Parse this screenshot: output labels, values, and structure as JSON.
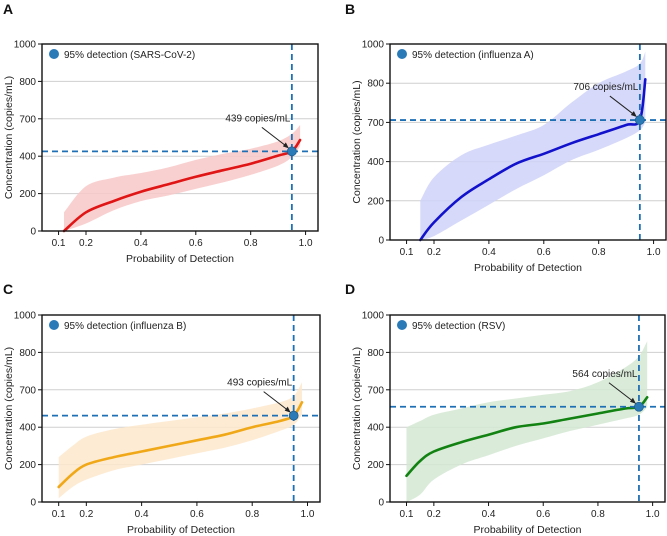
{
  "chart_data": [
    {
      "panel": "A",
      "type": "line",
      "xlabel": "Probability of Detection",
      "ylabel": "Concentration (copies/mL)",
      "ylim": [
        0,
        1000
      ],
      "xticks": [
        "0.1",
        "0.2",
        "0.4",
        "0.6",
        "0.8",
        "1.0"
      ],
      "yticks": [
        "0",
        "200",
        "400",
        "700",
        "800",
        "1000"
      ],
      "legend": "95% detection (SARS-CoV-2)",
      "annotation": "439 copies/mL",
      "color": "#e01515",
      "band_color": "#f8c8c8",
      "detection_point": {
        "x": 0.95,
        "y": 439
      },
      "x": [
        0.12,
        0.2,
        0.3,
        0.4,
        0.5,
        0.6,
        0.7,
        0.8,
        0.9,
        0.95,
        0.98
      ],
      "values": [
        0,
        100,
        160,
        210,
        250,
        290,
        325,
        360,
        405,
        439,
        530
      ],
      "band_low": [
        0,
        40,
        110,
        160,
        190,
        225,
        260,
        300,
        350,
        395,
        480
      ],
      "band_high": [
        100,
        240,
        285,
        310,
        340,
        380,
        420,
        460,
        520,
        580,
        650
      ]
    },
    {
      "panel": "B",
      "type": "line",
      "xlabel": "Probability of Detection",
      "ylabel": "Concentration (copies/mL)",
      "ylim": [
        0,
        1000
      ],
      "xticks": [
        "0.1",
        "0.2",
        "0.4",
        "0.6",
        "0.8",
        "1.0"
      ],
      "yticks": [
        "0",
        "200",
        "400",
        "700",
        "800",
        "1000"
      ],
      "legend": "95% detection (influenza A)",
      "annotation": "706 copies/mL",
      "color": "#1212cc",
      "band_color": "#cfd2f8",
      "detection_point": {
        "x": 0.95,
        "y": 706
      },
      "x": [
        0.15,
        0.2,
        0.3,
        0.4,
        0.5,
        0.6,
        0.7,
        0.8,
        0.9,
        0.95,
        0.97
      ],
      "values": [
        0,
        90,
        220,
        310,
        390,
        460,
        540,
        610,
        680,
        706,
        820
      ],
      "band_low": [
        0,
        20,
        100,
        180,
        260,
        330,
        410,
        490,
        580,
        640,
        700
      ],
      "band_high": [
        200,
        320,
        450,
        530,
        600,
        680,
        750,
        800,
        860,
        900,
        960
      ]
    },
    {
      "panel": "C",
      "type": "line",
      "xlabel": "Probability of Detection",
      "ylabel": "Concentration (copies/mL)",
      "ylim": [
        0,
        1000
      ],
      "xticks": [
        "0.1",
        "0.2",
        "0.4",
        "0.6",
        "0.8",
        "1.0"
      ],
      "yticks": [
        "0",
        "200",
        "400",
        "700",
        "800",
        "1000"
      ],
      "legend": "95% detection (influenza B)",
      "annotation": "493 copies/mL",
      "color": "#f0a818",
      "band_color": "#fde8cc",
      "detection_point": {
        "x": 0.95,
        "y": 493
      },
      "x": [
        0.1,
        0.15,
        0.2,
        0.3,
        0.4,
        0.5,
        0.6,
        0.7,
        0.8,
        0.9,
        0.95,
        0.98
      ],
      "values": [
        80,
        150,
        200,
        240,
        270,
        300,
        330,
        360,
        400,
        450,
        493,
        600
      ],
      "band_low": [
        20,
        80,
        120,
        170,
        200,
        230,
        260,
        290,
        330,
        380,
        420,
        500
      ],
      "band_high": [
        240,
        300,
        350,
        390,
        420,
        450,
        480,
        510,
        550,
        600,
        650,
        720
      ]
    },
    {
      "panel": "D",
      "type": "line",
      "xlabel": "Probability of Detection",
      "ylabel": "Concentration (copies/mL)",
      "ylim": [
        0,
        1000
      ],
      "xticks": [
        "0.1",
        "0.2",
        "0.4",
        "0.6",
        "0.8",
        "1.0"
      ],
      "yticks": [
        "0",
        "200",
        "400",
        "700",
        "800",
        "1000"
      ],
      "legend": "95% detection (RSV)",
      "annotation": "564 copies/mL",
      "color": "#128212",
      "band_color": "#d4e8d2",
      "detection_point": {
        "x": 0.95,
        "y": 564
      },
      "x": [
        0.1,
        0.15,
        0.2,
        0.3,
        0.4,
        0.5,
        0.6,
        0.7,
        0.8,
        0.9,
        0.95,
        0.98
      ],
      "values": [
        140,
        220,
        270,
        320,
        360,
        400,
        430,
        470,
        510,
        550,
        564,
        640
      ],
      "band_low": [
        0,
        40,
        120,
        200,
        250,
        300,
        340,
        380,
        420,
        470,
        500,
        560
      ],
      "band_high": [
        400,
        450,
        500,
        550,
        600,
        630,
        660,
        690,
        720,
        760,
        790,
        860
      ]
    }
  ]
}
